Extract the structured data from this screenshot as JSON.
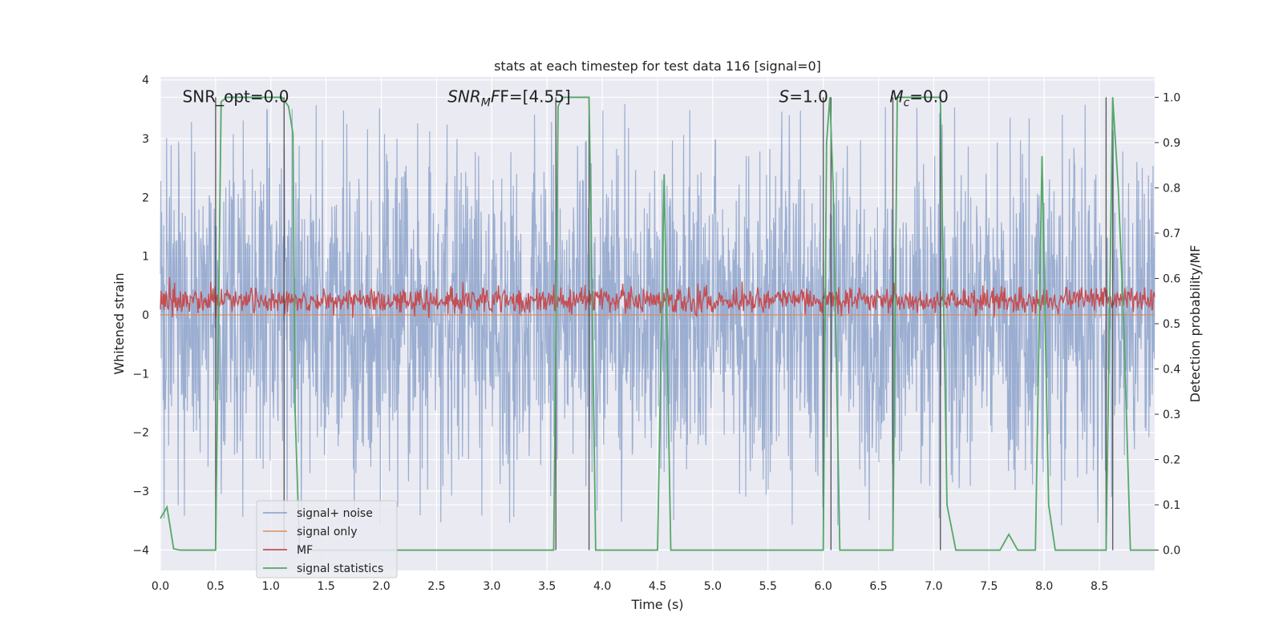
{
  "chart_data": {
    "type": "line",
    "title": "stats at each timestep for test data 116 [signal=0]",
    "xlabel": "Time (s)",
    "ylabel": "Whitened strain",
    "y2label": "Detection probability/MF",
    "xlim": [
      0,
      9.0
    ],
    "ylim": [
      -4.35,
      4.05
    ],
    "y2lim": [
      -0.045,
      1.045
    ],
    "xticks": [
      0.0,
      0.5,
      1.0,
      1.5,
      2.0,
      2.5,
      3.0,
      3.5,
      4.0,
      4.5,
      5.0,
      5.5,
      6.0,
      6.5,
      7.0,
      7.5,
      8.0,
      8.5
    ],
    "xtick_labels": [
      "0.0",
      "0.5",
      "1.0",
      "1.5",
      "2.0",
      "2.5",
      "3.0",
      "3.5",
      "4.0",
      "4.5",
      "5.0",
      "5.5",
      "6.0",
      "6.5",
      "7.0",
      "7.5",
      "8.0",
      "8.5"
    ],
    "yticks": [
      -4,
      -3,
      -2,
      -1,
      0,
      1,
      2,
      3,
      4
    ],
    "ytick_labels": [
      "−4",
      "−3",
      "−2",
      "−1",
      "0",
      "1",
      "2",
      "3",
      "4"
    ],
    "y2ticks": [
      0.0,
      0.1,
      0.2,
      0.3,
      0.4,
      0.5,
      0.6,
      0.7,
      0.8,
      0.9,
      1.0
    ],
    "y2tick_labels": [
      "0.0",
      "0.1",
      "0.2",
      "0.3",
      "0.4",
      "0.5",
      "0.6",
      "0.7",
      "0.8",
      "0.9",
      "1.0"
    ],
    "grid": true,
    "legend_position": "lower-left",
    "annotations": {
      "snr_opt": {
        "label": "SNR_opt=0.0",
        "x": 0.2,
        "y": 3.62
      },
      "snr_mf": {
        "prefix": "SNR",
        "sub": "M",
        "suffix": "F=[4.55]",
        "x": 2.6,
        "y": 3.62
      },
      "s": {
        "italic": "S",
        "suffix": "=1.0",
        "x": 5.6,
        "y": 3.62
      },
      "mc": {
        "italic": "M",
        "sub": "c",
        "suffix": "=0.0",
        "x": 6.6,
        "y": 3.62
      }
    },
    "series": [
      {
        "name": "signal+ noise",
        "color": "#4c72b0",
        "axis": "left",
        "style": "noise",
        "amplitude_typical": 1.4,
        "amplitude_peak": 3.6
      },
      {
        "name": "signal only",
        "color": "#dd8452",
        "axis": "left",
        "values_constant": 0.0
      },
      {
        "name": "MF",
        "color": "#c44e52",
        "axis": "left",
        "mean": 0.25,
        "range": [
          -0.05,
          0.98
        ]
      },
      {
        "name": "signal statistics",
        "color": "#55a868",
        "axis": "right",
        "x": [
          0.0,
          0.06,
          0.12,
          0.18,
          0.5,
          0.55,
          0.6,
          1.1,
          1.13,
          1.16,
          1.2,
          1.22,
          1.26,
          3.56,
          3.6,
          3.64,
          3.88,
          3.9,
          3.94,
          4.5,
          4.56,
          4.62,
          4.7,
          6.0,
          6.03,
          6.06,
          6.09,
          6.15,
          6.4,
          6.63,
          6.67,
          6.7,
          7.06,
          7.12,
          7.2,
          7.6,
          7.68,
          7.76,
          7.92,
          7.98,
          8.04,
          8.1,
          8.56,
          8.62,
          8.67,
          8.72,
          8.78,
          9.0
        ],
        "values": [
          0.07,
          0.095,
          0.003,
          0.0,
          0.0,
          0.99,
          1.0,
          1.0,
          0.99,
          0.98,
          0.92,
          0.3,
          0.0,
          0.0,
          0.98,
          1.0,
          1.0,
          0.7,
          0.0,
          0.0,
          0.83,
          0.0,
          0.0,
          0.0,
          0.9,
          1.0,
          0.8,
          0.0,
          0.0,
          0.0,
          1.0,
          1.0,
          1.0,
          0.1,
          0.0,
          0.0,
          0.035,
          0.0,
          0.0,
          0.87,
          0.1,
          0.0,
          0.0,
          1.0,
          0.8,
          0.5,
          0.0,
          0.0
        ]
      }
    ],
    "vlines": [
      {
        "x": 0.5,
        "y2": [
          0.0,
          1.0
        ]
      },
      {
        "x": 1.12,
        "y2": [
          0.0,
          1.0
        ]
      },
      {
        "x": 3.58,
        "y2": [
          0.0,
          1.0
        ]
      },
      {
        "x": 3.88,
        "y2": [
          0.0,
          1.0
        ]
      },
      {
        "x": 6.0,
        "y2": [
          0.0,
          1.0
        ]
      },
      {
        "x": 6.07,
        "y2": [
          0.0,
          1.0
        ]
      },
      {
        "x": 6.63,
        "y2": [
          0.0,
          1.0
        ]
      },
      {
        "x": 7.06,
        "y2": [
          0.0,
          1.0
        ]
      },
      {
        "x": 8.56,
        "y2": [
          0.0,
          1.0
        ]
      },
      {
        "x": 8.62,
        "y2": [
          0.0,
          1.0
        ]
      }
    ]
  }
}
